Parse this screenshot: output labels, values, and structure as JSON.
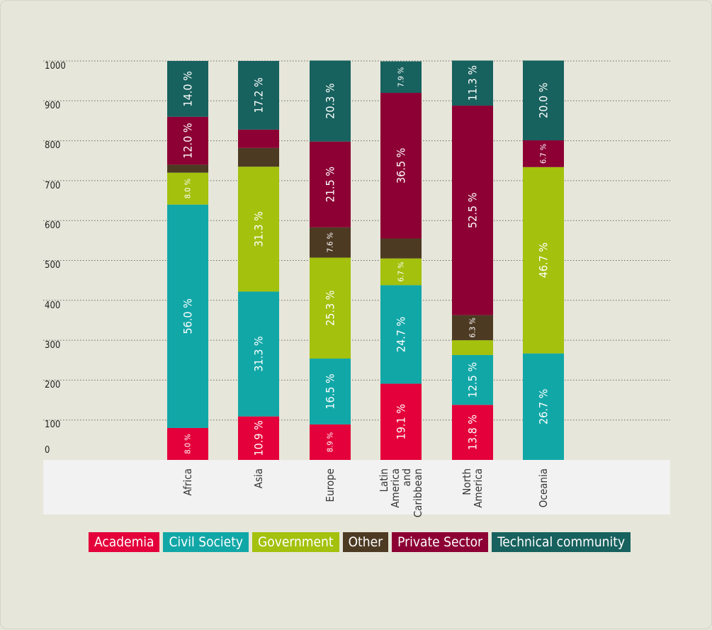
{
  "chart_data": {
    "type": "bar",
    "stacked": true,
    "ylim": [
      0,
      1000
    ],
    "y_ticks": [
      "0",
      "100",
      "200",
      "300",
      "400",
      "500",
      "600",
      "700",
      "800",
      "900",
      "1000"
    ],
    "grid": "horizontal dotted",
    "legend_position": "bottom",
    "categories": [
      [
        "Africa"
      ],
      [
        "Asia"
      ],
      [
        "Europe"
      ],
      [
        "Latin",
        "America",
        "and",
        "Caribbean"
      ],
      [
        "North",
        "America"
      ],
      [
        "Oceania"
      ]
    ],
    "series": [
      {
        "name": "Academia",
        "color": "#e4003a",
        "values": [
          80,
          109,
          89,
          191,
          138,
          0
        ],
        "labels": [
          "8.0 %",
          "10.9 %",
          "8.9 %",
          "19.1 %",
          "13.8 %",
          ""
        ]
      },
      {
        "name": "Civil Society",
        "color": "#12a7a7",
        "values": [
          560,
          313,
          165,
          247,
          125,
          267
        ],
        "labels": [
          "56.0 %",
          "31.3 %",
          "16.5 %",
          "24.7 %",
          "12.5 %",
          "26.7 %"
        ]
      },
      {
        "name": "Government",
        "color": "#a3c10d",
        "values": [
          80,
          313,
          253,
          67,
          37,
          467
        ],
        "labels": [
          "8.0 %",
          "31.3 %",
          "25.3 %",
          "6.7 %",
          "",
          "46.7 %"
        ]
      },
      {
        "name": "Other",
        "color": "#4d3a23",
        "values": [
          20,
          47,
          76,
          50,
          63,
          0
        ],
        "labels": [
          "",
          "",
          "7.6 %",
          "",
          "6.3 %",
          ""
        ]
      },
      {
        "name": "Private Sector",
        "color": "#8c0033",
        "values": [
          120,
          46,
          215,
          365,
          525,
          67
        ],
        "labels": [
          "12.0 %",
          "",
          "21.5 %",
          "36.5 %",
          "52.5 %",
          "6.7 %"
        ]
      },
      {
        "name": "Technical community",
        "color": "#17615e",
        "values": [
          140,
          172,
          203,
          79,
          113,
          200
        ],
        "labels": [
          "14.0 %",
          "17.2 %",
          "20.3 %",
          "7.9 %",
          "11.3 %",
          "20.0 %"
        ]
      }
    ]
  }
}
